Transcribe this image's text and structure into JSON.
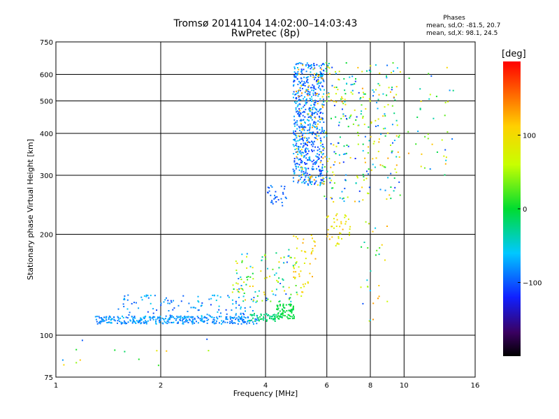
{
  "header": {
    "title_line1": "Tromsø 20141104 14:02:00–14:03:43",
    "title_line2": "RwPretec (8p)"
  },
  "phases": {
    "title": "Phases",
    "o_text": "mean, sd,O: -81.5, 20.7",
    "x_text": "mean, sd,X:  98.1, 24.5"
  },
  "colorbar": {
    "label": "deg",
    "range": [
      -200,
      200
    ],
    "ticks": [
      100,
      0,
      -100
    ],
    "tick_labels": [
      "100",
      "0",
      "−100"
    ]
  },
  "chart_data": {
    "type": "scatter",
    "xlabel": "Frequency [MHz]",
    "ylabel": "Stationary phase Virtual Height [km]",
    "x_scale": "log",
    "y_scale": "log",
    "xlim": [
      1,
      16
    ],
    "ylim": [
      75,
      750
    ],
    "x_ticks": [
      1,
      2,
      4,
      6,
      8,
      10,
      16
    ],
    "x_tick_labels": [
      "1",
      "2",
      "4",
      "6",
      "8",
      "10",
      "16"
    ],
    "y_ticks": [
      75,
      100,
      200,
      300,
      400,
      500,
      600,
      750
    ],
    "y_tick_labels": [
      "75",
      "100",
      "200",
      "300",
      "400",
      "500",
      "600",
      "750"
    ],
    "grid": true,
    "point_groups": [
      {
        "x_range": [
          1.3,
          3.8
        ],
        "y_range": [
          108,
          114
        ],
        "phase_range": [
          -100,
          -60
        ],
        "count": 320
      },
      {
        "x_range": [
          1.5,
          3.8
        ],
        "y_range": [
          112,
          132
        ],
        "phase_range": [
          -110,
          -50
        ],
        "count": 120
      },
      {
        "x_range": [
          3.6,
          4.5
        ],
        "y_range": [
          110,
          116
        ],
        "phase_range": [
          -30,
          -5
        ],
        "count": 60
      },
      {
        "x_range": [
          4.3,
          4.9
        ],
        "y_range": [
          112,
          124
        ],
        "phase_range": [
          -10,
          5
        ],
        "count": 70
      },
      {
        "x_range": [
          3.2,
          5.0
        ],
        "y_range": [
          125,
          180
        ],
        "phase_range": [
          -110,
          120
        ],
        "count": 110
      },
      {
        "x_range": [
          4.8,
          5.6
        ],
        "y_range": [
          130,
          200
        ],
        "phase_range": [
          60,
          130
        ],
        "count": 45
      },
      {
        "x_range": [
          4.0,
          4.6
        ],
        "y_range": [
          240,
          280
        ],
        "phase_range": [
          -110,
          -80
        ],
        "count": 30
      },
      {
        "x_range": [
          4.8,
          5.9
        ],
        "y_range": [
          280,
          650
        ],
        "phase_range": [
          -120,
          -50
        ],
        "count": 600
      },
      {
        "x_range": [
          4.9,
          5.9
        ],
        "y_range": [
          280,
          650
        ],
        "phase_range": [
          80,
          140
        ],
        "count": 70
      },
      {
        "x_range": [
          5.9,
          9.8
        ],
        "y_range": [
          250,
          650
        ],
        "phase_range": [
          -120,
          140
        ],
        "count": 280
      },
      {
        "x_range": [
          6.0,
          7.0
        ],
        "y_range": [
          180,
          230
        ],
        "phase_range": [
          60,
          130
        ],
        "count": 40
      },
      {
        "x_range": [
          7.5,
          9.0
        ],
        "y_range": [
          110,
          220
        ],
        "phase_range": [
          -120,
          140
        ],
        "count": 30
      },
      {
        "x_range": [
          10.0,
          14.0
        ],
        "y_range": [
          300,
          650
        ],
        "phase_range": [
          -110,
          140
        ],
        "count": 40
      },
      {
        "x_range": [
          1.0,
          3.8
        ],
        "y_range": [
          80,
          100
        ],
        "phase_range": [
          -110,
          120
        ],
        "count": 14
      }
    ]
  }
}
